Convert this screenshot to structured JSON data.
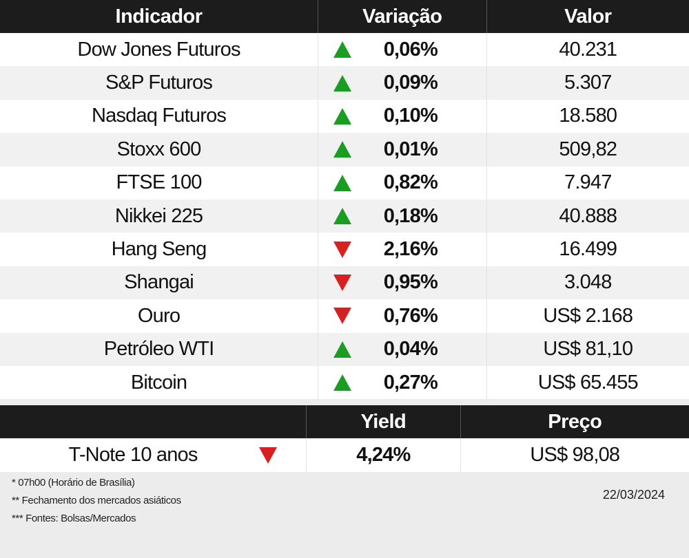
{
  "colors": {
    "up": "#1a9e22",
    "down": "#d92020",
    "header_bg": "#1c1c1c"
  },
  "headers": {
    "indicator": "Indicador",
    "variation": "Variação",
    "value": "Valor"
  },
  "rows": [
    {
      "name": "Dow Jones Futuros",
      "direction": "up",
      "variation": "0,06%",
      "value": "40.231"
    },
    {
      "name": "S&P Futuros",
      "direction": "up",
      "variation": "0,09%",
      "value": "5.307"
    },
    {
      "name": "Nasdaq Futuros",
      "direction": "up",
      "variation": "0,10%",
      "value": "18.580"
    },
    {
      "name": "Stoxx 600",
      "direction": "up",
      "variation": "0,01%",
      "value": "509,82"
    },
    {
      "name": "FTSE 100",
      "direction": "up",
      "variation": "0,82%",
      "value": "7.947"
    },
    {
      "name": "Nikkei 225",
      "direction": "up",
      "variation": "0,18%",
      "value": "40.888"
    },
    {
      "name": "Hang Seng",
      "direction": "down",
      "variation": "2,16%",
      "value": "16.499"
    },
    {
      "name": "Shangai",
      "direction": "down",
      "variation": "0,95%",
      "value": "3.048"
    },
    {
      "name": "Ouro",
      "direction": "down",
      "variation": "0,76%",
      "value": "US$ 2.168"
    },
    {
      "name": "Petróleo WTI",
      "direction": "up",
      "variation": "0,04%",
      "value": "US$ 81,10"
    },
    {
      "name": "Bitcoin",
      "direction": "up",
      "variation": "0,27%",
      "value": "US$ 65.455"
    }
  ],
  "bond_headers": {
    "blank": "",
    "yield": "Yield",
    "price": "Preço"
  },
  "bond": {
    "name": "T-Note 10 anos",
    "direction": "down",
    "yield": "4,24%",
    "price": "US$ 98,08"
  },
  "footnotes": {
    "note1": "* 07h00 (Horário de Brasília)",
    "note2": "** Fechamento dos mercados asiáticos",
    "note3": "*** Fontes: Bolsas/Mercados",
    "date": "22/03/2024"
  }
}
